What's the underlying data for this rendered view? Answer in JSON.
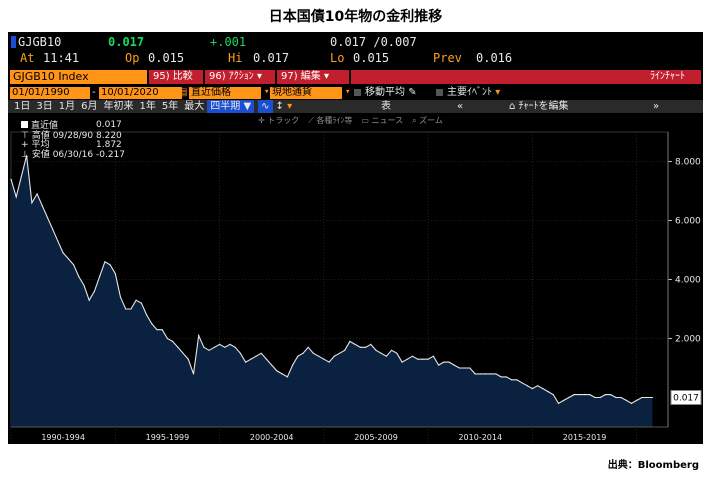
{
  "figure_title": "日本国債10年物の金利推移",
  "credit": "出典：Bloomberg",
  "terminal": {
    "quote": {
      "ticker": "GJGB10",
      "last": "0.017",
      "change": "+.001",
      "bid_ask": "0.017 /0.007",
      "at_label": "At",
      "at_time": "11:41",
      "op_label": "Op",
      "op": "0.015",
      "hi_label": "Hi",
      "hi": "0.017",
      "lo_label": "Lo",
      "lo": "0.015",
      "prev_label": "Prev",
      "prev": "0.016"
    },
    "toolbar": {
      "security": "GJGB10 Index",
      "compare": "95) 比較",
      "actions": "96) ｱｸｼｮﾝ",
      "edit": "97) 編集",
      "line_chart": "ﾗｲﾝﾁｬｰﾄ"
    },
    "settings": {
      "start_date": "01/01/1990",
      "end_date": "10/01/2020",
      "price_type": "直近価格",
      "currency": "現地通貨",
      "moving_avg": "移動平均",
      "events": "主要ｲﾍﾞﾝﾄ"
    },
    "periods": [
      "1日",
      "3日",
      "1月",
      "6月",
      "年初来",
      "1年",
      "5年",
      "最大"
    ],
    "frequency": "四半期",
    "table_label": "表",
    "edit_chart": "ﾁｬｰﾄを編集",
    "tools": [
      "トラック",
      "各種ﾗｲﾝ等",
      "ニュース",
      "ズーム"
    ],
    "legend": [
      {
        "label": "直近値",
        "value": "0.017"
      },
      {
        "label": "高値 09/28/90",
        "value": "8.220"
      },
      {
        "label": "平均",
        "value": "1.872"
      },
      {
        "label": "安値 06/30/16",
        "value": "-0.217"
      }
    ],
    "last_value_tag": "0.017",
    "colors": {
      "accent": "#ff9417",
      "alert": "#c11f2e",
      "gain": "#19d85f",
      "area_fill": "#0a2240",
      "line": "#e6e6e6"
    }
  },
  "chart_data": {
    "type": "area",
    "title": "",
    "xlabel": "",
    "ylabel": "",
    "ylim": [
      -1,
      9
    ],
    "yticks": [
      2,
      4,
      6,
      8
    ],
    "ytick_labels": [
      "2.000",
      "4.000",
      "6.000",
      "8.000"
    ],
    "xtick_labels": [
      "1990-1994",
      "1995-1999",
      "2000-2004",
      "2005-2009",
      "2010-2014",
      "2015-2019"
    ],
    "grid": true,
    "series": [
      {
        "x": [
          1990.0,
          1990.25,
          1990.5,
          1990.75,
          1991.0,
          1991.25,
          1991.5,
          1991.75,
          1992.0,
          1992.25,
          1992.5,
          1992.75,
          1993.0,
          1993.25,
          1993.5,
          1993.75,
          1994.0,
          1994.25,
          1994.5,
          1994.75,
          1995.0,
          1995.25,
          1995.5,
          1995.75,
          1996.0,
          1996.25,
          1996.5,
          1996.75,
          1997.0,
          1997.25,
          1997.5,
          1997.75,
          1998.0,
          1998.25,
          1998.5,
          1998.75,
          1999.0,
          1999.25,
          1999.5,
          1999.75,
          2000.0,
          2000.25,
          2000.5,
          2000.75,
          2001.0,
          2001.25,
          2001.5,
          2001.75,
          2002.0,
          2002.25,
          2002.5,
          2002.75,
          2003.0,
          2003.25,
          2003.5,
          2003.75,
          2004.0,
          2004.25,
          2004.5,
          2004.75,
          2005.0,
          2005.25,
          2005.5,
          2005.75,
          2006.0,
          2006.25,
          2006.5,
          2006.75,
          2007.0,
          2007.25,
          2007.5,
          2007.75,
          2008.0,
          2008.25,
          2008.5,
          2008.75,
          2009.0,
          2009.25,
          2009.5,
          2009.75,
          2010.0,
          2010.25,
          2010.5,
          2010.75,
          2011.0,
          2011.25,
          2011.5,
          2011.75,
          2012.0,
          2012.25,
          2012.5,
          2012.75,
          2013.0,
          2013.25,
          2013.5,
          2013.75,
          2014.0,
          2014.25,
          2014.5,
          2014.75,
          2015.0,
          2015.25,
          2015.5,
          2015.75,
          2016.0,
          2016.25,
          2016.5,
          2016.75,
          2017.0,
          2017.25,
          2017.5,
          2017.75,
          2018.0,
          2018.25,
          2018.5,
          2018.75,
          2019.0,
          2019.25,
          2019.5,
          2019.75,
          2020.0,
          2020.25,
          2020.5,
          2020.75
        ],
        "values": [
          7.4,
          6.8,
          7.5,
          8.2,
          6.6,
          6.9,
          6.5,
          6.1,
          5.7,
          5.3,
          4.9,
          4.7,
          4.5,
          4.1,
          3.8,
          3.3,
          3.6,
          4.1,
          4.6,
          4.5,
          4.2,
          3.4,
          3.0,
          3.0,
          3.3,
          3.2,
          2.8,
          2.5,
          2.3,
          2.3,
          2.0,
          1.9,
          1.7,
          1.5,
          1.3,
          0.8,
          2.1,
          1.7,
          1.6,
          1.7,
          1.8,
          1.7,
          1.8,
          1.7,
          1.5,
          1.2,
          1.3,
          1.4,
          1.5,
          1.3,
          1.1,
          0.9,
          0.8,
          0.7,
          1.1,
          1.4,
          1.5,
          1.7,
          1.5,
          1.4,
          1.3,
          1.2,
          1.4,
          1.5,
          1.6,
          1.9,
          1.8,
          1.7,
          1.7,
          1.8,
          1.6,
          1.5,
          1.4,
          1.6,
          1.5,
          1.2,
          1.3,
          1.4,
          1.3,
          1.3,
          1.3,
          1.4,
          1.1,
          1.2,
          1.2,
          1.1,
          1.0,
          1.0,
          1.0,
          0.8,
          0.8,
          0.8,
          0.8,
          0.8,
          0.7,
          0.7,
          0.6,
          0.6,
          0.5,
          0.4,
          0.3,
          0.4,
          0.3,
          0.2,
          0.1,
          -0.2,
          -0.1,
          0.0,
          0.1,
          0.1,
          0.1,
          0.1,
          0.0,
          0.0,
          0.1,
          0.1,
          0.0,
          0.0,
          -0.1,
          -0.2,
          -0.1,
          0.0,
          0.0,
          0.0
        ]
      }
    ]
  }
}
